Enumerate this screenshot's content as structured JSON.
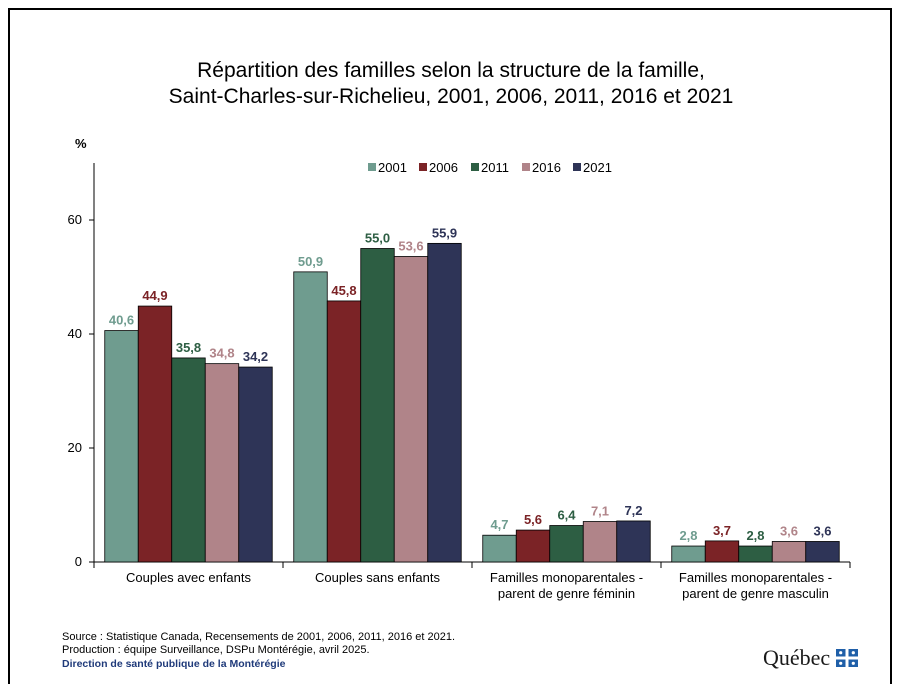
{
  "chart_data": {
    "type": "bar",
    "title_lines": [
      "Répartition des familles selon la structure de la famille,",
      "Saint-Charles-sur-Richelieu, 2001, 2006, 2011, 2016 et 2021"
    ],
    "ylabel": "%",
    "ylim": [
      0,
      70
    ],
    "yticks": [
      0,
      20,
      40,
      60
    ],
    "grid": false,
    "legend_position": "top",
    "categories": [
      [
        "Couples avec enfants"
      ],
      [
        "Couples sans enfants"
      ],
      [
        "Familles monoparentales -",
        "parent de genre féminin"
      ],
      [
        "Familles monoparentales -",
        "parent de genre masculin"
      ]
    ],
    "series": [
      {
        "name": "2001",
        "color": "#6f9c8f",
        "label_color": "#6f9c8f",
        "values": [
          40.6,
          50.9,
          4.7,
          2.8
        ],
        "labels": [
          "40,6",
          "50,9",
          "4,7",
          "2,8"
        ]
      },
      {
        "name": "2006",
        "color": "#7b2326",
        "label_color": "#7b2326",
        "values": [
          44.9,
          45.8,
          5.6,
          3.7
        ],
        "labels": [
          "44,9",
          "45,8",
          "5,6",
          "3,7"
        ]
      },
      {
        "name": "2011",
        "color": "#2d5e43",
        "label_color": "#2d5e43",
        "values": [
          35.8,
          55.0,
          6.4,
          2.8
        ],
        "labels": [
          "35,8",
          "55,0",
          "6,4",
          "2,8"
        ]
      },
      {
        "name": "2016",
        "color": "#b08489",
        "label_color": "#b08489",
        "values": [
          34.8,
          53.6,
          7.1,
          3.6
        ],
        "labels": [
          "34,8",
          "53,6",
          "7,1",
          "3,6"
        ]
      },
      {
        "name": "2021",
        "color": "#2e3457",
        "label_color": "#2e3457",
        "values": [
          34.2,
          55.9,
          7.2,
          3.6
        ],
        "labels": [
          "34,2",
          "55,9",
          "7,2",
          "3,6"
        ]
      }
    ]
  },
  "footer": {
    "source": "Source : Statistique Canada, Recensements de 2001, 2006, 2011, 2016 et 2021.",
    "production": "Production : équipe Surveillance, DSPu Montérégie, avril 2025.",
    "department": "Direction de santé publique de la Montérégie"
  },
  "logo": {
    "text": "Québec",
    "flag_color": "#1f5fa8"
  }
}
